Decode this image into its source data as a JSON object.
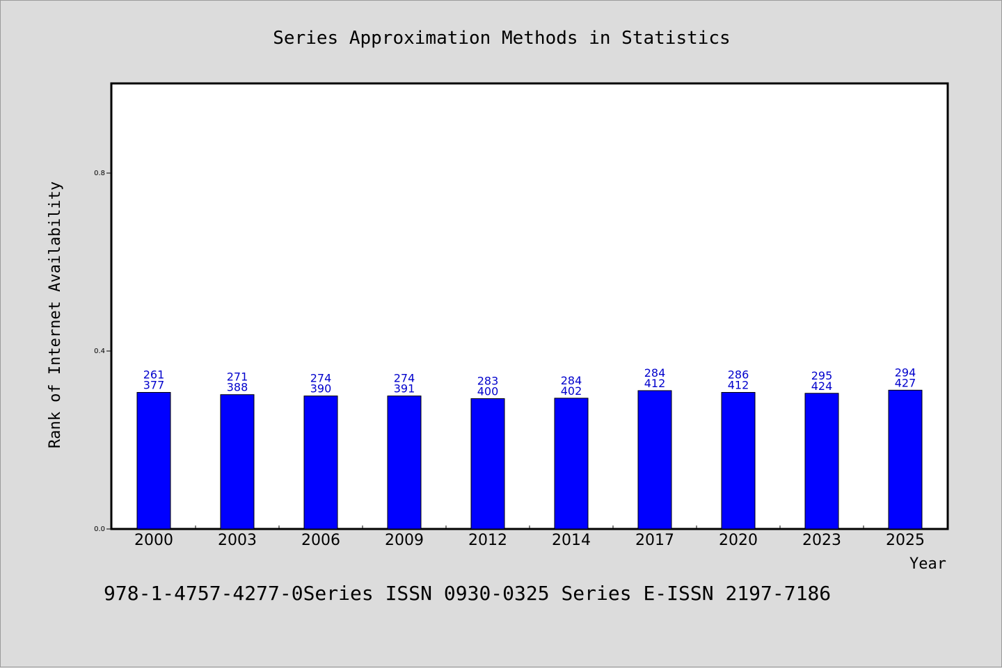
{
  "chart_data": {
    "type": "bar",
    "title": "Series Approximation Methods in Statistics",
    "xlabel": "Year",
    "ylabel": "Rank of Internet Availability",
    "footer": "978-1-4757-4277-0Series ISSN 0930-0325 Series E-ISSN 2197-7186",
    "ylim": [
      0.0,
      1.0
    ],
    "yticks": [
      0.0,
      0.4,
      0.8
    ],
    "ytick_labels": [
      "0.0",
      "0.4",
      "0.8"
    ],
    "grid": false,
    "legend": "none",
    "bar_color": "#0000ff",
    "label_color": "#0000cc",
    "categories": [
      "2000",
      "2003",
      "2006",
      "2009",
      "2012",
      "2014",
      "2017",
      "2020",
      "2023",
      "2025"
    ],
    "values": [
      0.307,
      0.302,
      0.299,
      0.299,
      0.293,
      0.294,
      0.311,
      0.307,
      0.305,
      0.312
    ],
    "label_top": [
      "261",
      "271",
      "274",
      "274",
      "283",
      "284",
      "284",
      "286",
      "295",
      "294"
    ],
    "label_bottom": [
      "377",
      "388",
      "390",
      "391",
      "400",
      "402",
      "412",
      "412",
      "424",
      "427"
    ]
  }
}
